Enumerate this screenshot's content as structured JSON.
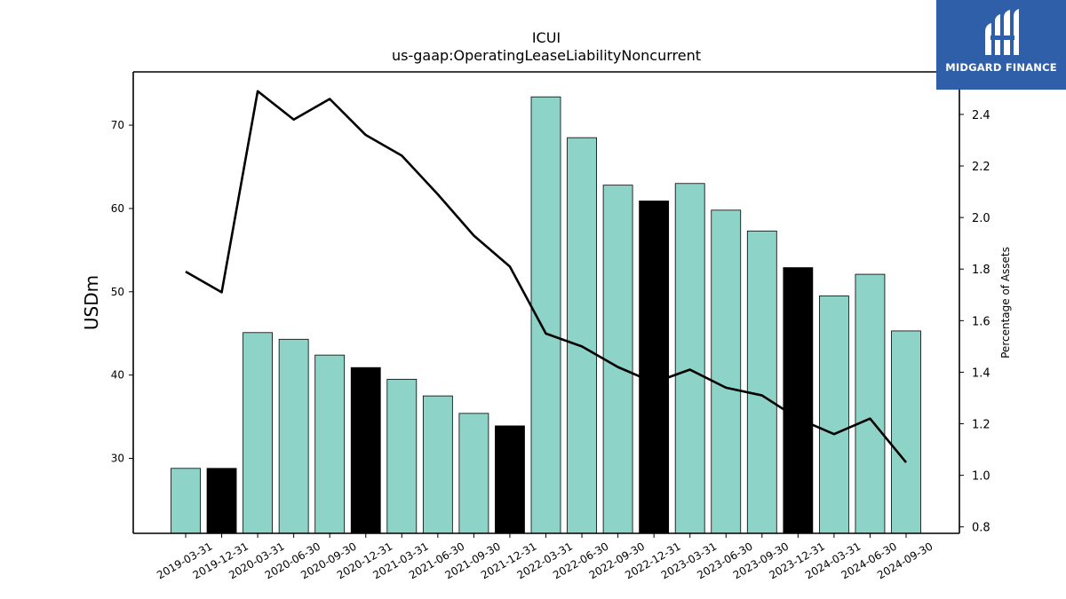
{
  "chart_data": {
    "type": "bar",
    "title": "ICUI",
    "subtitle": "us-gaap:OperatingLeaseLiabilityNoncurrent",
    "ylabel": "USDm",
    "y2label": "Percentage of Assets",
    "ylim": [
      21,
      76.4
    ],
    "y2lim": [
      0.775,
      2.565
    ],
    "yticks": [
      30,
      40,
      50,
      60,
      70
    ],
    "y2ticks": [
      0.8,
      1.0,
      1.2,
      1.4,
      1.6,
      1.8,
      2.0,
      2.2,
      2.4
    ],
    "categories": [
      "2019-03-31",
      "2019-12-31",
      "2020-03-31",
      "2020-06-30",
      "2020-09-30",
      "2020-12-31",
      "2021-03-31",
      "2021-06-30",
      "2021-09-30",
      "2021-12-31",
      "2022-03-31",
      "2022-06-30",
      "2022-09-30",
      "2022-12-31",
      "2023-03-31",
      "2023-06-30",
      "2023-09-30",
      "2023-12-31",
      "2024-03-31",
      "2024-06-30",
      "2024-09-30"
    ],
    "series": [
      {
        "type": "bar",
        "axis": "left",
        "values": [
          28.8,
          28.8,
          45.1,
          44.3,
          42.4,
          40.9,
          39.5,
          37.5,
          35.4,
          33.9,
          73.4,
          68.5,
          62.8,
          60.9,
          63.0,
          59.8,
          57.3,
          52.9,
          49.5,
          52.1,
          45.3
        ],
        "year_end": [
          false,
          true,
          false,
          false,
          false,
          true,
          false,
          false,
          false,
          true,
          false,
          false,
          false,
          true,
          false,
          false,
          false,
          true,
          false,
          false,
          false
        ]
      },
      {
        "type": "line",
        "axis": "right",
        "values": [
          1.79,
          1.71,
          2.49,
          2.38,
          2.46,
          2.32,
          2.24,
          2.09,
          1.93,
          1.81,
          1.55,
          1.5,
          1.42,
          1.36,
          1.41,
          1.34,
          1.31,
          1.22,
          1.16,
          1.22,
          1.05
        ]
      }
    ],
    "colors": {
      "bar": "#8dd3c7",
      "bar_year_end": "#000000",
      "line": "#000000"
    },
    "grid": false,
    "legend": "none"
  },
  "logo": {
    "text": "MIDGARD FINANCE",
    "background": "#2f5fa8"
  }
}
